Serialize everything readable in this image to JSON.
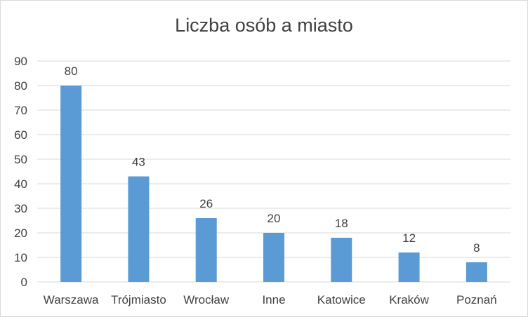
{
  "chart_data": {
    "type": "bar",
    "title": "Liczba osób a miasto",
    "xlabel": "",
    "ylabel": "",
    "categories": [
      "Warszawa",
      "Trójmiasto",
      "Wrocław",
      "Inne",
      "Katowice",
      "Kraków",
      "Poznań"
    ],
    "values": [
      80,
      43,
      26,
      20,
      18,
      12,
      8
    ],
    "ylim": [
      0,
      90
    ],
    "yticks": [
      0,
      10,
      20,
      30,
      40,
      50,
      60,
      70,
      80,
      90
    ],
    "grid": true,
    "legend": "none",
    "bar_color": "#5b9bd5",
    "grid_color": "#d9d9d9",
    "text_color": "#404040"
  }
}
